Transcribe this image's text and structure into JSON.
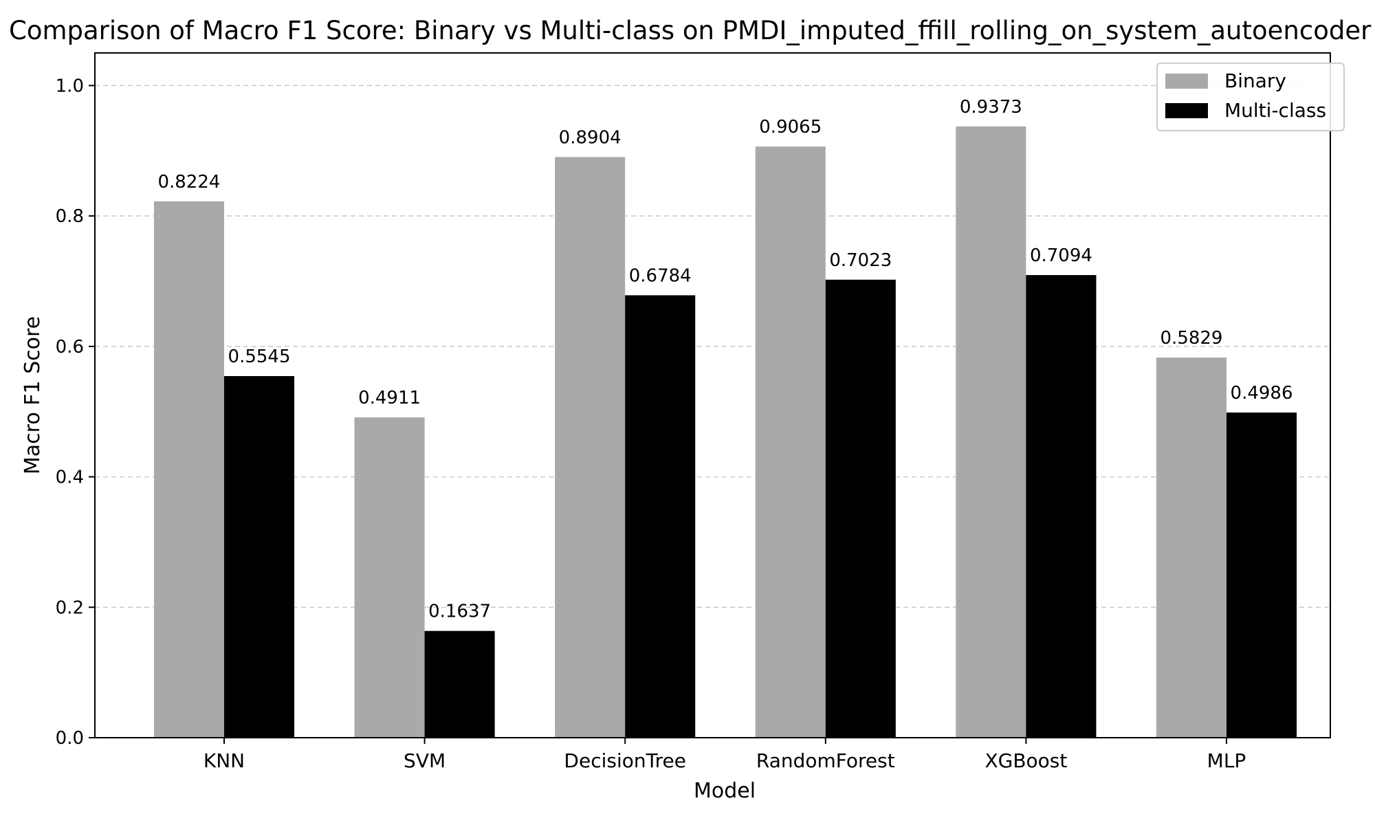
{
  "chart_data": {
    "type": "bar",
    "title": "Comparison of Macro F1 Score: Binary vs Multi-class on PMDI_imputed_ffill_rolling_on_system_autoencoder",
    "xlabel": "Model",
    "ylabel": "Macro F1 Score",
    "categories": [
      "KNN",
      "SVM",
      "DecisionTree",
      "RandomForest",
      "XGBoost",
      "MLP"
    ],
    "series": [
      {
        "name": "Binary",
        "color": "#a9a9a9",
        "values": [
          0.8224,
          0.4911,
          0.8904,
          0.9065,
          0.9373,
          0.5829
        ],
        "labels": [
          "0.8224",
          "0.4911",
          "0.8904",
          "0.9065",
          "0.9373",
          "0.5829"
        ]
      },
      {
        "name": "Multi-class",
        "color": "#000000",
        "values": [
          0.5545,
          0.1637,
          0.6784,
          0.7023,
          0.7094,
          0.4986
        ],
        "labels": [
          "0.5545",
          "0.1637",
          "0.6784",
          "0.7023",
          "0.7094",
          "0.4986"
        ]
      }
    ],
    "ylim": [
      0,
      1.05
    ],
    "yticks": [
      0.0,
      0.2,
      0.4,
      0.6,
      0.8,
      1.0
    ],
    "ytick_labels": [
      "0.0",
      "0.2",
      "0.4",
      "0.6",
      "0.8",
      "1.0"
    ],
    "grid": "y-dashed",
    "legend_position": "top-right"
  }
}
